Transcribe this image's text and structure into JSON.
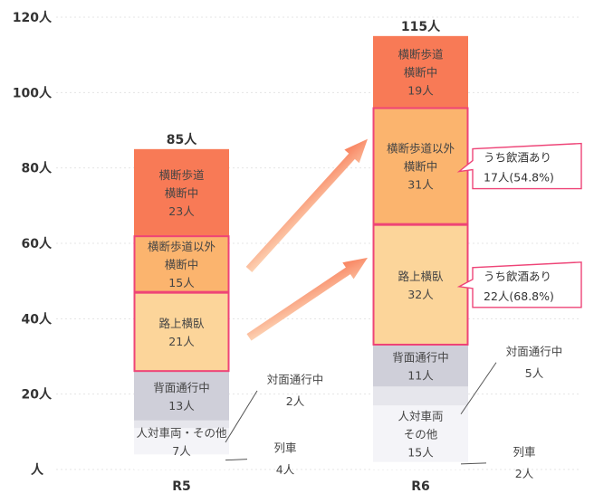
{
  "chart_data": {
    "type": "bar",
    "stacked": true,
    "categories": [
      "R5",
      "R6"
    ],
    "ylim": [
      0,
      120
    ],
    "yticks": [
      {
        "value": 0,
        "label": "人"
      },
      {
        "value": 20,
        "label": "20人"
      },
      {
        "value": 40,
        "label": "40人"
      },
      {
        "value": 60,
        "label": "60人"
      },
      {
        "value": 80,
        "label": "80人"
      },
      {
        "value": 100,
        "label": "100人"
      },
      {
        "value": 120,
        "label": "120人"
      }
    ],
    "totals": [
      "85人",
      "115人"
    ],
    "series": [
      {
        "name": "列車",
        "values": [
          4,
          2
        ],
        "color": "#ffffff",
        "labels": [
          [
            "列車",
            "4人"
          ],
          [
            "列車",
            "2人"
          ]
        ],
        "label_mode": "callout"
      },
      {
        "name": "人対車両・その他",
        "values": [
          7,
          15
        ],
        "color": "#f4f4f8",
        "labels": [
          [
            "人対車両・その他",
            "7人"
          ],
          [
            "人対車両",
            "その他",
            "15人"
          ]
        ],
        "label_mode": "inside"
      },
      {
        "name": "対面通行中",
        "values": [
          2,
          5
        ],
        "color": "#e6e6ec",
        "labels": [
          [
            "対面通行中",
            "2人"
          ],
          [
            "対面通行中",
            "5人"
          ]
        ],
        "label_mode": "callout"
      },
      {
        "name": "背面通行中",
        "values": [
          13,
          11
        ],
        "color": "#cfcfd9",
        "labels": [
          [
            "背面通行中",
            "13人"
          ],
          [
            "背面通行中",
            "11人"
          ]
        ],
        "label_mode": "inside"
      },
      {
        "name": "路上横臥",
        "values": [
          21,
          32
        ],
        "color": "#fcd59a",
        "labels": [
          [
            "路上横臥",
            "21人"
          ],
          [
            "路上横臥",
            "32人"
          ]
        ],
        "label_mode": "inside",
        "highlight": true
      },
      {
        "name": "横断歩道以外横断中",
        "values": [
          15,
          31
        ],
        "color": "#fbb46e",
        "labels": [
          [
            "横断歩道以外",
            "横断中",
            "15人"
          ],
          [
            "横断歩道以外",
            "横断中",
            "31人"
          ]
        ],
        "label_mode": "inside",
        "highlight": true
      },
      {
        "name": "横断歩道横断中",
        "values": [
          23,
          19
        ],
        "color": "#f87a56",
        "labels": [
          [
            "横断歩道",
            "横断中",
            "23人"
          ],
          [
            "横断歩道",
            "横断中",
            "19人"
          ]
        ],
        "label_mode": "inside"
      }
    ],
    "callouts": [
      {
        "series": "横断歩道以外横断中",
        "lines": [
          "うち飲酒あり",
          "17人(54.8%)"
        ],
        "value": 17
      },
      {
        "series": "路上横臥",
        "lines": [
          "うち飲酒あり",
          "22人(68.8%)"
        ],
        "value": 22
      }
    ],
    "colors": {
      "highlight_border": "#ee4477",
      "arrow": "#f87a56",
      "axis_text": "#333333",
      "grid": "#e4e4e4"
    }
  }
}
